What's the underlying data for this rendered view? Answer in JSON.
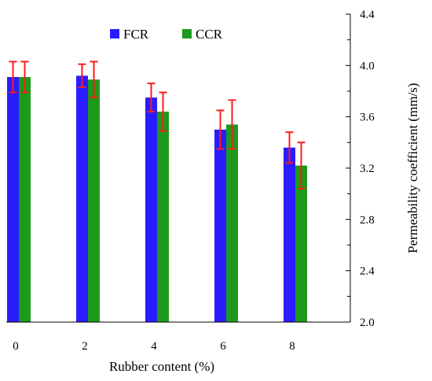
{
  "chart_data": {
    "type": "bar",
    "categories": [
      "0",
      "2",
      "4",
      "6",
      "8"
    ],
    "series": [
      {
        "name": "FCR",
        "values": [
          3.91,
          3.92,
          3.75,
          3.5,
          3.36
        ],
        "error": [
          0.12,
          0.09,
          0.11,
          0.15,
          0.12
        ],
        "color": "#2a1cff"
      },
      {
        "name": "CCR",
        "values": [
          3.91,
          3.89,
          3.64,
          3.54,
          3.22
        ],
        "error": [
          0.12,
          0.14,
          0.15,
          0.19,
          0.18
        ],
        "color": "#1c9a1c"
      }
    ],
    "error_bar_color": "#ff1a1a",
    "xlabel": "Rubber content (%)",
    "ylabel": "Permeability coefficient (mm/s)",
    "ylim": [
      2.0,
      4.4
    ],
    "yticks": [
      "2.0",
      "2.4",
      "2.8",
      "3.2",
      "3.6",
      "4.0",
      "4.4"
    ],
    "y_axis_side": "right",
    "legend_position": "top-left",
    "grid": false
  }
}
